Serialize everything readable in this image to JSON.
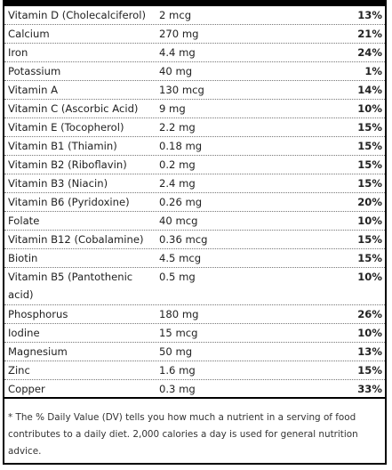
{
  "nutrients": [
    {
      "name": "Vitamin D (Cholecalciferol)",
      "amount": "2 mcg",
      "dv": "13%"
    },
    {
      "name": "Calcium",
      "amount": "270 mg",
      "dv": "21%"
    },
    {
      "name": "Iron",
      "amount": "4.4 mg",
      "dv": "24%"
    },
    {
      "name": "Potassium",
      "amount": "40 mg",
      "dv": "1%"
    },
    {
      "name": "Vitamin A",
      "amount": "130 mcg",
      "dv": "14%"
    },
    {
      "name": "Vitamin C (Ascorbic Acid)",
      "amount": "9 mg",
      "dv": "10%"
    },
    {
      "name": "Vitamin E (Tocopherol)",
      "amount": "2.2 mg",
      "dv": "15%"
    },
    {
      "name": "Vitamin B1 (Thiamin)",
      "amount": "0.18 mg",
      "dv": "15%"
    },
    {
      "name": "Vitamin B2 (Riboflavin)",
      "amount": "0.2 mg",
      "dv": "15%"
    },
    {
      "name": "Vitamin B3 (Niacin)",
      "amount": "2.4 mg",
      "dv": "15%"
    },
    {
      "name": "Vitamin B6 (Pyridoxine)",
      "amount": "0.26 mg",
      "dv": "20%"
    },
    {
      "name": "Folate",
      "amount": "40 mcg",
      "dv": "10%"
    },
    {
      "name": "Vitamin B12 (Cobalamine)",
      "amount": "0.36 mcg",
      "dv": "15%"
    },
    {
      "name": "Biotin",
      "amount": "4.5 mcg",
      "dv": "15%"
    },
    {
      "name": "Vitamin B5 (Pantothenic acid)",
      "amount": "0.5 mg",
      "dv": "10%"
    },
    {
      "name": "Phosphorus",
      "amount": "180 mg",
      "dv": "26%"
    },
    {
      "name": "Iodine",
      "amount": "15 mcg",
      "dv": "10%"
    },
    {
      "name": "Magnesium",
      "amount": "50 mg",
      "dv": "13%"
    },
    {
      "name": "Zinc",
      "amount": "1.6 mg",
      "dv": "15%"
    },
    {
      "name": "Copper",
      "amount": "0.3 mg",
      "dv": "33%"
    }
  ],
  "footnote": "* The % Daily Value (DV) tells you how much a nutrient in a serving of food contributes to a daily diet. 2,000 calories a day is used for general nutrition advice."
}
